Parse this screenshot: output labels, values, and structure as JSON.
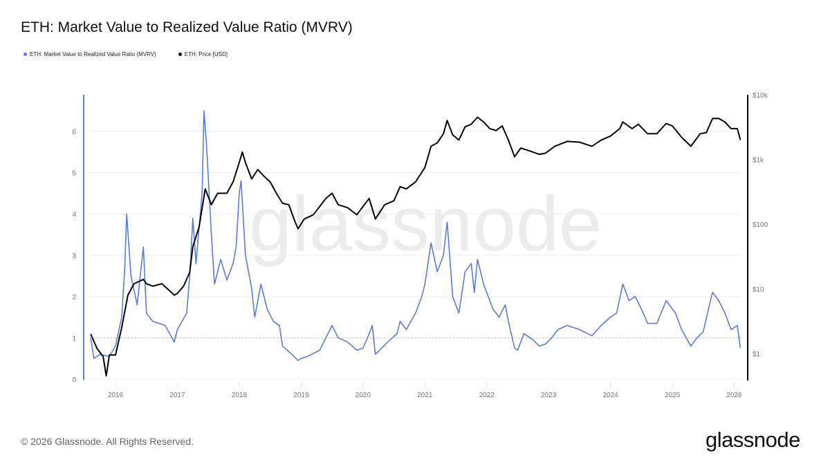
{
  "title": "ETH: Market Value to Realized Value Ratio (MVRV)",
  "footer": "© 2026 Glassnode. All Rights Reserved.",
  "logo": "glassnode",
  "watermark": "glassnode",
  "chart_data": {
    "type": "line",
    "title": "ETH: Market Value to Realized Value Ratio (MVRV)",
    "legend": [
      "ETH: Market Value to Realized Value Ratio (MVRV)",
      "ETH: Price [USD]"
    ],
    "legend_placement": "top-left",
    "grid": true,
    "reference_line": {
      "axis": "left",
      "value": 1,
      "style": "dotted"
    },
    "x_axis": {
      "type": "date",
      "range": [
        2015.5,
        2026.15
      ],
      "ticks": [
        "2016",
        "2017",
        "2018",
        "2019",
        "2020",
        "2021",
        "2022",
        "2023",
        "2024",
        "2025",
        "2026"
      ]
    },
    "y_left": {
      "range": [
        0,
        6.9
      ],
      "ticks": [
        "0",
        "1",
        "2",
        "3",
        "4",
        "5",
        "6"
      ],
      "color": "#5b7be0"
    },
    "y_right": {
      "scale": "log",
      "range": [
        0.3,
        10000
      ],
      "ticks": [
        "$1",
        "$10",
        "$100",
        "$1k",
        "$10k"
      ],
      "tick_values": [
        1,
        10,
        100,
        1000,
        10000
      ],
      "color": "#000000"
    },
    "series": [
      {
        "name": "ETH: Market Value to Realized Value Ratio (MVRV)",
        "axis": "left",
        "color": "#5b7be0",
        "x": [
          2015.6,
          2015.65,
          2015.75,
          2015.9,
          2016.0,
          2016.1,
          2016.15,
          2016.18,
          2016.25,
          2016.35,
          2016.45,
          2016.5,
          2016.6,
          2016.8,
          2016.95,
          2017.0,
          2017.15,
          2017.2,
          2017.25,
          2017.3,
          2017.4,
          2017.43,
          2017.47,
          2017.55,
          2017.6,
          2017.7,
          2017.8,
          2017.9,
          2017.95,
          2018.0,
          2018.03,
          2018.1,
          2018.2,
          2018.25,
          2018.35,
          2018.45,
          2018.55,
          2018.65,
          2018.7,
          2018.85,
          2018.95,
          2019.0,
          2019.1,
          2019.3,
          2019.45,
          2019.5,
          2019.6,
          2019.75,
          2019.9,
          2020.0,
          2020.1,
          2020.15,
          2020.2,
          2020.4,
          2020.55,
          2020.6,
          2020.7,
          2020.85,
          2020.95,
          2021.0,
          2021.1,
          2021.2,
          2021.3,
          2021.36,
          2021.45,
          2021.55,
          2021.65,
          2021.75,
          2021.8,
          2021.85,
          2021.95,
          2022.1,
          2022.2,
          2022.3,
          2022.35,
          2022.45,
          2022.5,
          2022.6,
          2022.75,
          2022.85,
          2022.95,
          2023.05,
          2023.15,
          2023.3,
          2023.5,
          2023.7,
          2023.85,
          2024.0,
          2024.1,
          2024.2,
          2024.3,
          2024.4,
          2024.5,
          2024.6,
          2024.75,
          2024.9,
          2024.95,
          2025.05,
          2025.15,
          2025.3,
          2025.4,
          2025.5,
          2025.6,
          2025.65,
          2025.75,
          2025.85,
          2025.95,
          2026.05,
          2026.1
        ],
        "values": [
          1.0,
          0.5,
          0.6,
          0.55,
          0.8,
          1.5,
          2.7,
          4.0,
          2.5,
          1.8,
          3.2,
          1.6,
          1.4,
          1.3,
          0.9,
          1.2,
          1.6,
          2.5,
          3.9,
          2.8,
          4.5,
          6.5,
          5.7,
          3.5,
          2.3,
          2.9,
          2.4,
          2.8,
          3.2,
          4.5,
          4.8,
          3.0,
          2.2,
          1.5,
          2.3,
          1.7,
          1.4,
          1.3,
          0.8,
          0.6,
          0.45,
          0.5,
          0.55,
          0.7,
          1.15,
          1.3,
          1.0,
          0.9,
          0.7,
          0.75,
          1.1,
          1.3,
          0.6,
          0.9,
          1.1,
          1.4,
          1.2,
          1.6,
          2.0,
          2.3,
          3.3,
          2.6,
          3.0,
          3.8,
          2.0,
          1.6,
          2.6,
          2.8,
          2.1,
          2.9,
          2.3,
          1.7,
          1.5,
          1.8,
          1.4,
          0.75,
          0.7,
          1.1,
          0.95,
          0.8,
          0.85,
          1.0,
          1.2,
          1.3,
          1.2,
          1.05,
          1.3,
          1.5,
          1.6,
          2.3,
          1.9,
          2.0,
          1.7,
          1.35,
          1.35,
          1.9,
          1.8,
          1.6,
          1.2,
          0.8,
          1.0,
          1.15,
          1.8,
          2.1,
          1.9,
          1.6,
          1.2,
          1.3,
          0.75
        ]
      },
      {
        "name": "ETH: Price [USD]",
        "axis": "right",
        "color": "#000000",
        "x": [
          2015.6,
          2015.7,
          2015.8,
          2015.85,
          2015.9,
          2016.0,
          2016.1,
          2016.2,
          2016.3,
          2016.45,
          2016.5,
          2016.6,
          2016.75,
          2016.95,
          2017.0,
          2017.1,
          2017.2,
          2017.25,
          2017.35,
          2017.45,
          2017.55,
          2017.65,
          2017.8,
          2017.9,
          2018.0,
          2018.05,
          2018.1,
          2018.2,
          2018.3,
          2018.4,
          2018.5,
          2018.6,
          2018.7,
          2018.8,
          2018.9,
          2018.95,
          2019.05,
          2019.2,
          2019.4,
          2019.5,
          2019.6,
          2019.75,
          2019.9,
          2020.1,
          2020.2,
          2020.35,
          2020.5,
          2020.6,
          2020.7,
          2020.85,
          2021.0,
          2021.1,
          2021.2,
          2021.3,
          2021.36,
          2021.45,
          2021.55,
          2021.65,
          2021.75,
          2021.85,
          2021.95,
          2022.05,
          2022.15,
          2022.25,
          2022.35,
          2022.45,
          2022.55,
          2022.7,
          2022.85,
          2022.95,
          2023.1,
          2023.3,
          2023.5,
          2023.7,
          2023.85,
          2024.0,
          2024.15,
          2024.2,
          2024.35,
          2024.45,
          2024.6,
          2024.75,
          2024.9,
          2025.0,
          2025.15,
          2025.3,
          2025.45,
          2025.55,
          2025.65,
          2025.75,
          2025.85,
          2025.95,
          2026.05,
          2026.1
        ],
        "values": [
          2.0,
          1.2,
          0.9,
          0.45,
          0.95,
          0.95,
          2.5,
          8,
          12,
          14,
          12,
          11,
          12,
          8,
          8.5,
          11,
          18,
          45,
          90,
          350,
          200,
          300,
          300,
          450,
          900,
          1300,
          900,
          500,
          700,
          550,
          450,
          300,
          210,
          200,
          110,
          85,
          120,
          140,
          250,
          300,
          200,
          180,
          140,
          250,
          120,
          200,
          230,
          380,
          350,
          450,
          750,
          1600,
          1800,
          2500,
          4000,
          2400,
          2000,
          3200,
          3500,
          4500,
          3800,
          3000,
          2800,
          3300,
          2000,
          1100,
          1500,
          1350,
          1200,
          1250,
          1600,
          1900,
          1850,
          1600,
          2000,
          2300,
          3000,
          3800,
          3000,
          3500,
          2500,
          2500,
          3600,
          3300,
          2200,
          1600,
          2500,
          2600,
          4300,
          4300,
          3800,
          3000,
          3000,
          2000
        ]
      }
    ]
  }
}
